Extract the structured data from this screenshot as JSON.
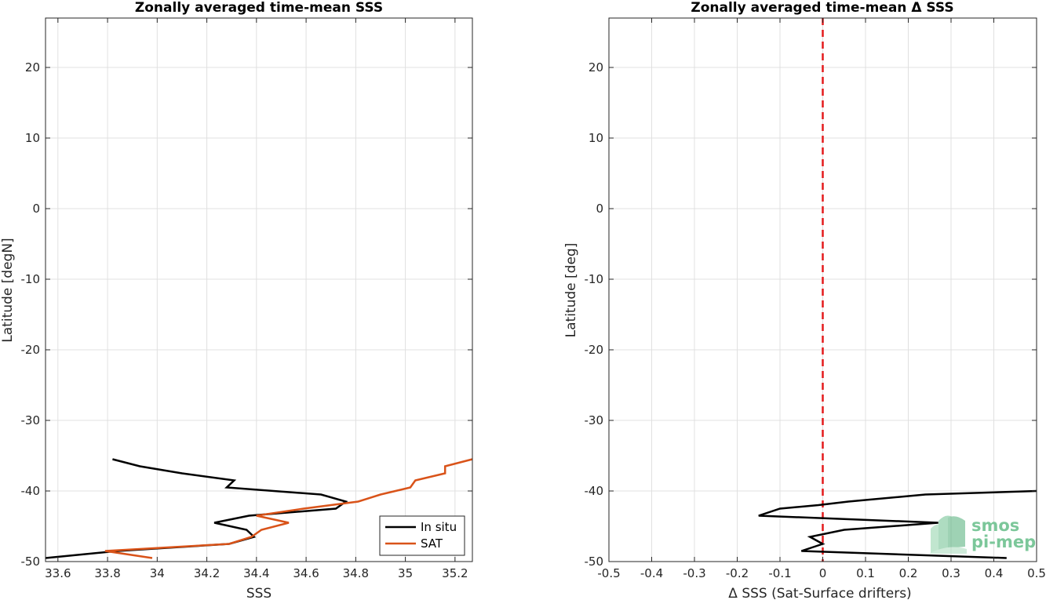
{
  "chart_data": [
    {
      "type": "line",
      "title": "Zonally averaged time-mean SSS",
      "xlabel": "SSS",
      "ylabel": "Latitude [degN]",
      "xlim": [
        33.55,
        35.27
      ],
      "ylim": [
        -50,
        27
      ],
      "xticks": [
        "33.6",
        "33.8",
        "34",
        "34.2",
        "34.4",
        "34.6",
        "34.8",
        "35",
        "35.2"
      ],
      "yticks": [
        "20",
        "10",
        "0",
        "-10",
        "-20",
        "-30",
        "-40",
        "-50"
      ],
      "grid": true,
      "legend": "bottom-right",
      "series": [
        {
          "name": "In situ",
          "color": "#000000",
          "points": [
            [
              33.82,
              -35.5
            ],
            [
              33.93,
              -36.5
            ],
            [
              34.1,
              -37.5
            ],
            [
              34.31,
              -38.5
            ],
            [
              34.28,
              -39.5
            ],
            [
              34.66,
              -40.5
            ],
            [
              34.76,
              -41.5
            ],
            [
              34.72,
              -42.5
            ],
            [
              34.37,
              -43.5
            ],
            [
              34.23,
              -44.5
            ],
            [
              34.36,
              -45.5
            ],
            [
              34.39,
              -46.5
            ],
            [
              34.29,
              -47.5
            ],
            [
              33.84,
              -48.5
            ],
            [
              33.55,
              -49.5
            ]
          ]
        },
        {
          "name": "SAT",
          "color": "#d95319",
          "points": [
            [
              35.27,
              -35.5
            ],
            [
              35.16,
              -36.5
            ],
            [
              35.16,
              -37.5
            ],
            [
              35.04,
              -38.5
            ],
            [
              35.02,
              -39.5
            ],
            [
              34.9,
              -40.5
            ],
            [
              34.81,
              -41.5
            ],
            [
              34.59,
              -42.5
            ],
            [
              34.4,
              -43.5
            ],
            [
              34.53,
              -44.5
            ],
            [
              34.42,
              -45.5
            ],
            [
              34.38,
              -46.5
            ],
            [
              34.29,
              -47.5
            ],
            [
              33.79,
              -48.5
            ],
            [
              33.98,
              -49.5
            ]
          ]
        }
      ]
    },
    {
      "type": "line",
      "title": "Zonally averaged time-mean Δ SSS",
      "xlabel": "Δ SSS (Sat-Surface drifters)",
      "ylabel": "Latitude [deg]",
      "xlim": [
        -0.5,
        0.5
      ],
      "ylim": [
        -50,
        27
      ],
      "xticks": [
        "-0.5",
        "-0.4",
        "-0.3",
        "-0.2",
        "-0.1",
        "0",
        "0.1",
        "0.2",
        "0.3",
        "0.4",
        "0.5"
      ],
      "yticks": [
        "20",
        "10",
        "0",
        "-10",
        "-20",
        "-30",
        "-40",
        "-50"
      ],
      "grid": true,
      "reference_line": {
        "x": 0,
        "color": "#e41a1c",
        "style": "dashed"
      },
      "series": [
        {
          "color": "#000000",
          "points": [
            [
              0.5,
              -40
            ],
            [
              0.24,
              -40.5
            ],
            [
              0.06,
              -41.5
            ],
            [
              -0.01,
              -42
            ],
            [
              -0.1,
              -42.5
            ],
            [
              -0.15,
              -43.5
            ],
            [
              0.27,
              -44.5
            ],
            [
              0.05,
              -45.5
            ],
            [
              -0.03,
              -46.5
            ],
            [
              0.0,
              -47.5
            ],
            [
              -0.05,
              -48.5
            ],
            [
              0.43,
              -49.5
            ]
          ]
        }
      ]
    }
  ],
  "logo": {
    "line1": "smos",
    "line2": "pi-mep",
    "color": "#6dc08f"
  }
}
